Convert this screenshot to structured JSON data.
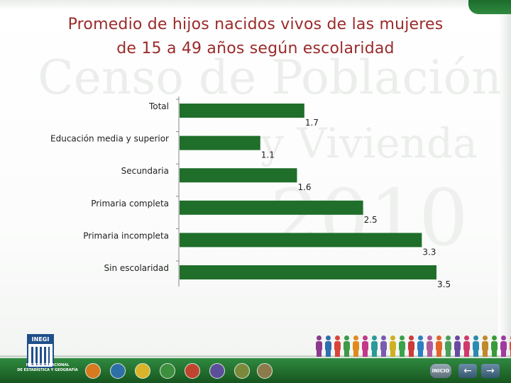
{
  "title": {
    "line1": "Promedio de hijos nacidos vivos de las mujeres",
    "line2": "de 15 a 49 años según escolaridad"
  },
  "watermark": {
    "line1": "Censo de Población",
    "line2": "y Vivienda",
    "line3": "2010"
  },
  "chart_data": {
    "type": "bar",
    "orientation": "horizontal",
    "categories": [
      "Total",
      "Educación media y superior",
      "Secundaria",
      "Primaria completa",
      "Primaria incompleta",
      "Sin escolaridad"
    ],
    "values": [
      1.7,
      1.1,
      1.6,
      2.5,
      3.3,
      3.5
    ],
    "value_labels": [
      "1.7",
      "1.1",
      "1.6",
      "2.5",
      "3.3",
      "3.5"
    ],
    "xlim": [
      0,
      3.5
    ],
    "bar_color": "#1f6e2a",
    "label_color": "#1f1f1f",
    "grid": false,
    "legend": "none"
  },
  "footer": {
    "logo_text": "INEGI",
    "institute_line1": "INSTITUTO NACIONAL",
    "institute_line2": "DE ESTADÍSTICA Y GEOGRAFÍA",
    "home_label": "INICIO",
    "back_icon": "arrow-left-icon",
    "next_icon": "arrow-right-icon",
    "accent_color": "#2f8a3f"
  }
}
